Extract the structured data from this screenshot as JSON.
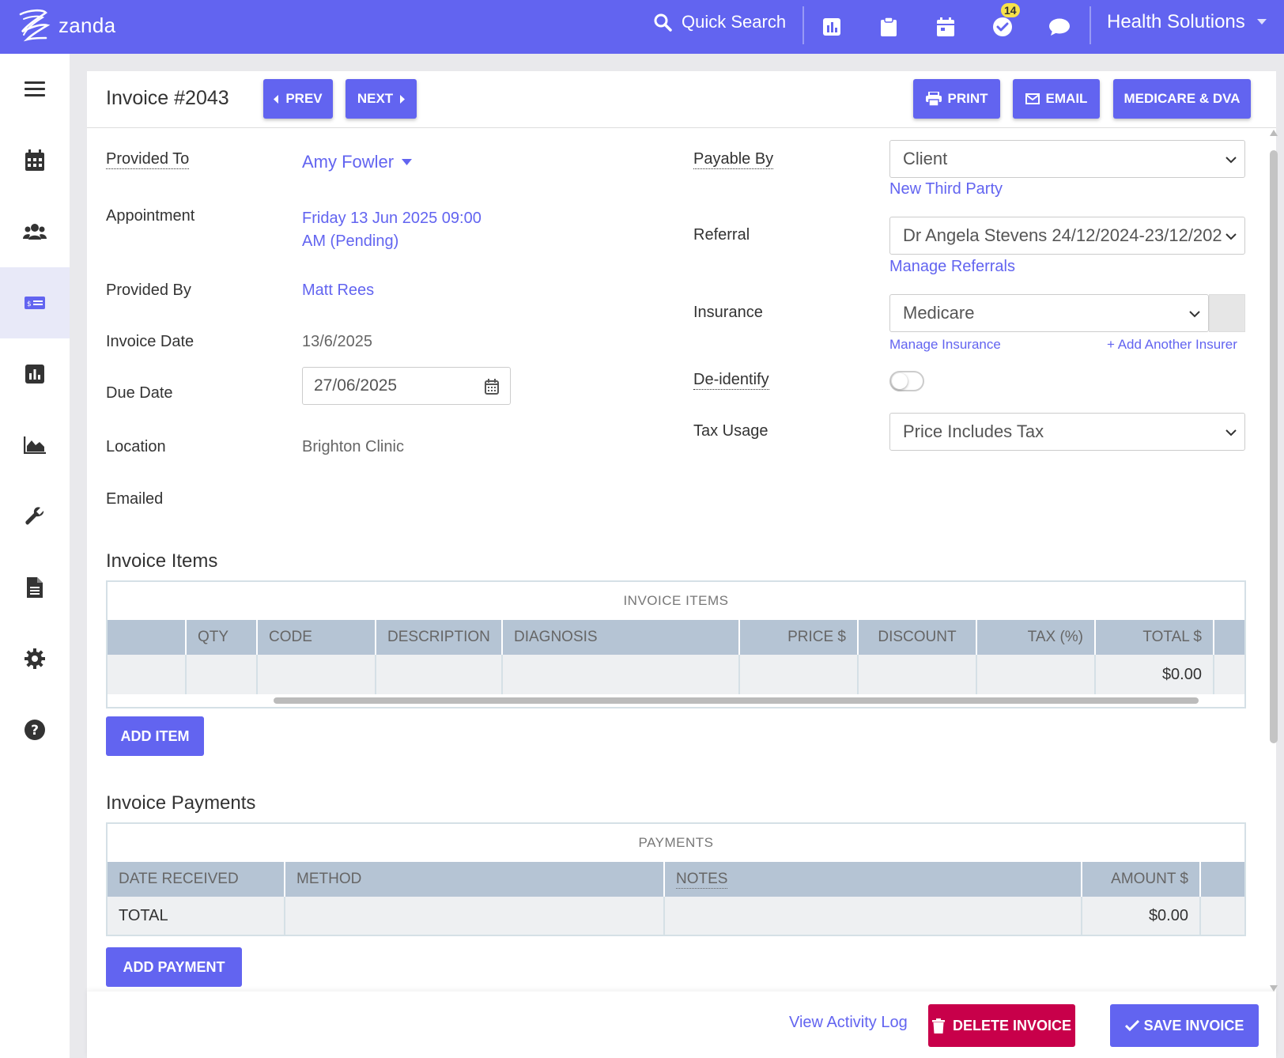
{
  "topbar": {
    "brand": "zanda",
    "search_label": "Quick Search",
    "tasks_badge": "14",
    "account_name": "Health Solutions"
  },
  "sidebar": {
    "items": [
      {
        "icon": "menu-icon"
      },
      {
        "icon": "calendar-icon"
      },
      {
        "icon": "clients-icon"
      },
      {
        "icon": "invoice-icon",
        "active": true
      },
      {
        "icon": "reports-icon"
      },
      {
        "icon": "analytics-icon"
      },
      {
        "icon": "tools-icon"
      },
      {
        "icon": "document-icon"
      },
      {
        "icon": "settings-icon"
      },
      {
        "icon": "help-icon"
      }
    ]
  },
  "header": {
    "title": "Invoice #2043",
    "prev_label": "PREV",
    "next_label": "NEXT",
    "print_label": "PRINT",
    "email_label": "EMAIL",
    "medicare_label": "MEDICARE & DVA"
  },
  "left_fields": {
    "provided_to_label": "Provided To",
    "provided_to_value": "Amy Fowler",
    "appointment_label": "Appointment",
    "appointment_line1": "Friday 13 Jun 2025 09:00",
    "appointment_line2": "AM (Pending)",
    "provided_by_label": "Provided By",
    "provided_by_value": "Matt Rees",
    "invoice_date_label": "Invoice Date",
    "invoice_date_value": "13/6/2025",
    "due_date_label": "Due Date",
    "due_date_value": "27/06/2025",
    "location_label": "Location",
    "location_value": "Brighton Clinic",
    "emailed_label": "Emailed"
  },
  "right_fields": {
    "payable_by_label": "Payable By",
    "payable_by_value": "Client",
    "new_third_party": "New Third Party",
    "referral_label": "Referral",
    "referral_value": "Dr Angela Stevens 24/12/2024-23/12/202",
    "manage_referrals": "Manage Referrals",
    "insurance_label": "Insurance",
    "insurance_value": "Medicare",
    "manage_insurance": "Manage Insurance",
    "add_insurer": "+ Add Another Insurer",
    "deidentify_label": "De-identify",
    "deidentify_on": false,
    "tax_usage_label": "Tax Usage",
    "tax_usage_value": "Price Includes Tax"
  },
  "invoice_items": {
    "section_title": "Invoice Items",
    "caption": "INVOICE ITEMS",
    "columns": [
      "",
      "QTY",
      "CODE",
      "DESCRIPTION",
      "DIAGNOSIS",
      "PRICE $",
      "DISCOUNT",
      "TAX (%)",
      "TOTAL $",
      ""
    ],
    "total_value": "$0.00",
    "add_label": "ADD ITEM"
  },
  "payments": {
    "section_title": "Invoice Payments",
    "caption": "PAYMENTS",
    "columns": [
      "DATE RECEIVED",
      "METHOD",
      "NOTES",
      "AMOUNT $",
      ""
    ],
    "total_label": "TOTAL",
    "total_value": "$0.00",
    "add_label": "ADD PAYMENT"
  },
  "footer": {
    "activity_log": "View Activity Log",
    "delete_label": "DELETE INVOICE",
    "save_label": "SAVE INVOICE"
  },
  "colors": {
    "brand": "#6264f0",
    "danger": "#c8004a",
    "table_header": "#b5c4d4"
  }
}
